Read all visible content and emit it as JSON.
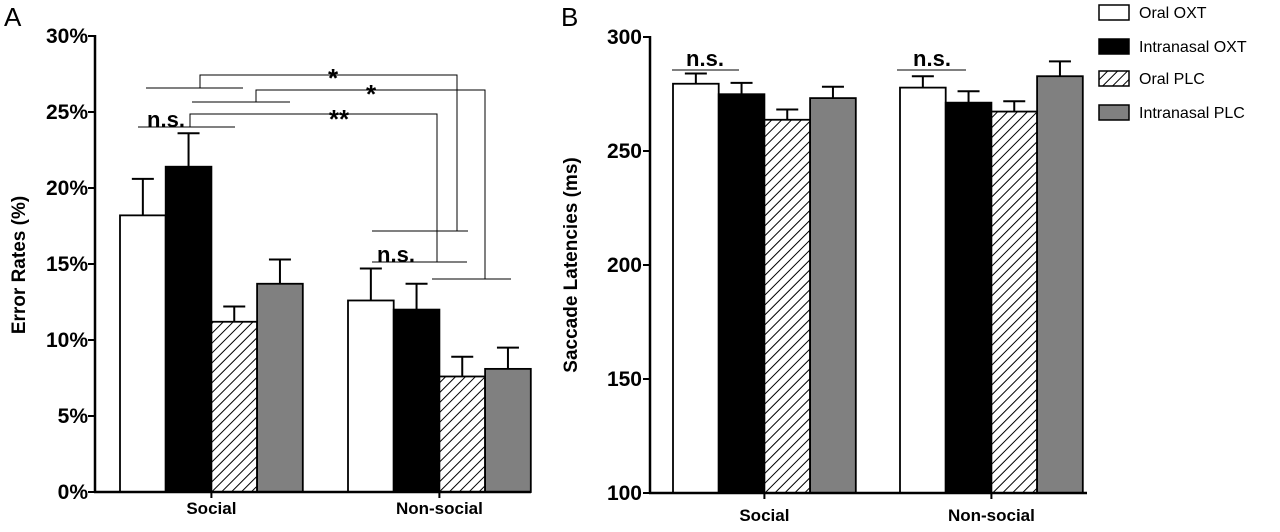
{
  "chart_data": [
    {
      "type": "bar",
      "panel": "A",
      "categories": [
        "Social",
        "Non-social"
      ],
      "ylabel": "Error Rates (%)",
      "ylim": [
        0,
        30
      ],
      "yticks": [
        "0%",
        "5%",
        "10%",
        "15%",
        "20%",
        "25%",
        "30%"
      ],
      "series": [
        {
          "name": "Oral OXT",
          "values": [
            18.2,
            12.6
          ],
          "errors": [
            2.4,
            2.1
          ]
        },
        {
          "name": "Intranasal OXT",
          "values": [
            21.4,
            12.0
          ],
          "errors": [
            2.2,
            1.7
          ]
        },
        {
          "name": "Oral PLC",
          "values": [
            11.2,
            7.6
          ],
          "errors": [
            1.0,
            1.3
          ]
        },
        {
          "name": "Intranasal PLC",
          "values": [
            13.7,
            8.1
          ],
          "errors": [
            1.6,
            1.4
          ]
        }
      ],
      "annotations": [
        "n.s.",
        "n.s.",
        "*",
        "*",
        "**"
      ]
    },
    {
      "type": "bar",
      "panel": "B",
      "categories": [
        "Social",
        "Non-social"
      ],
      "ylabel": "Saccade Latencies (ms)",
      "ylim": [
        100,
        300
      ],
      "yticks": [
        "100",
        "150",
        "200",
        "250",
        "300"
      ],
      "series": [
        {
          "name": "Oral OXT",
          "values": [
            279.5,
            277.8
          ],
          "errors": [
            4.5,
            5.0
          ]
        },
        {
          "name": "Intranasal OXT",
          "values": [
            274.9,
            271.2
          ],
          "errors": [
            5.0,
            5.0
          ]
        },
        {
          "name": "Oral PLC",
          "values": [
            263.7,
            267.3
          ],
          "errors": [
            4.5,
            4.5
          ]
        },
        {
          "name": "Intranasal PLC",
          "values": [
            273.2,
            282.8
          ],
          "errors": [
            5.0,
            6.5
          ]
        }
      ],
      "annotations": [
        "n.s.",
        "n.s."
      ]
    }
  ],
  "legend": [
    "Oral OXT",
    "Intranasal OXT",
    "Oral PLC",
    "Intranasal PLC"
  ],
  "colors": {
    "oral_oxt": "#ffffff",
    "intranasal_oxt": "#000000",
    "oral_plc": "hatched",
    "intranasal_plc": "#808080"
  }
}
